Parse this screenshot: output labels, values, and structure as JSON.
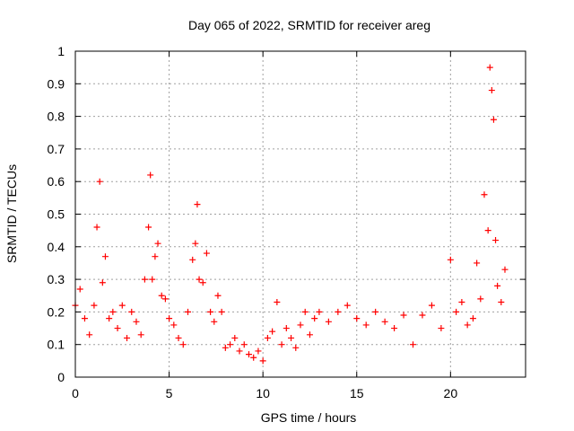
{
  "chart_data": {
    "type": "scatter",
    "title": "Day 065 of 2022, SRMTID for receiver areg",
    "xlabel": "GPS time / hours",
    "ylabel": "SRMTID / TECUs",
    "xlim": [
      0,
      24
    ],
    "ylim": [
      0,
      1
    ],
    "xticks": [
      0,
      5,
      10,
      15,
      20
    ],
    "yticks": [
      0,
      0.1,
      0.2,
      0.3,
      0.4,
      0.5,
      0.6,
      0.7,
      0.8,
      0.9,
      1
    ],
    "xtick_labels": [
      "0",
      "5",
      "10",
      "15",
      "20"
    ],
    "ytick_labels": [
      "0",
      "0.1",
      "0.2",
      "0.3",
      "0.4",
      "0.5",
      "0.6",
      "0.7",
      "0.8",
      "0.9",
      "1"
    ],
    "grid": true,
    "marker": "plus",
    "color": "#ff0000",
    "series": [
      {
        "name": "SRMTID",
        "x": [
          0.0,
          0.25,
          0.5,
          0.75,
          1.0,
          1.15,
          1.3,
          1.45,
          1.6,
          1.8,
          2.0,
          2.25,
          2.5,
          2.75,
          3.0,
          3.25,
          3.5,
          3.7,
          3.9,
          4.0,
          4.1,
          4.25,
          4.4,
          4.6,
          4.8,
          5.0,
          5.25,
          5.5,
          5.75,
          6.0,
          6.25,
          6.4,
          6.5,
          6.6,
          6.8,
          7.0,
          7.2,
          7.4,
          7.6,
          7.8,
          8.0,
          8.25,
          8.5,
          8.75,
          9.0,
          9.25,
          9.5,
          9.75,
          10.0,
          10.25,
          10.5,
          10.75,
          11.0,
          11.25,
          11.5,
          11.75,
          12.0,
          12.25,
          12.5,
          12.75,
          13.0,
          13.5,
          14.0,
          14.5,
          15.0,
          15.5,
          16.0,
          16.5,
          17.0,
          17.5,
          18.0,
          18.5,
          19.0,
          19.5,
          20.0,
          20.3,
          20.6,
          20.9,
          21.2,
          21.4,
          21.6,
          21.8,
          22.0,
          22.1,
          22.2,
          22.3,
          22.4,
          22.5,
          22.7,
          22.9
        ],
        "y": [
          0.22,
          0.27,
          0.18,
          0.13,
          0.22,
          0.46,
          0.6,
          0.29,
          0.37,
          0.18,
          0.2,
          0.15,
          0.22,
          0.12,
          0.2,
          0.17,
          0.13,
          0.3,
          0.46,
          0.62,
          0.3,
          0.37,
          0.41,
          0.25,
          0.24,
          0.18,
          0.16,
          0.12,
          0.1,
          0.2,
          0.36,
          0.41,
          0.53,
          0.3,
          0.29,
          0.38,
          0.2,
          0.17,
          0.25,
          0.2,
          0.09,
          0.1,
          0.12,
          0.08,
          0.1,
          0.07,
          0.06,
          0.08,
          0.05,
          0.12,
          0.14,
          0.23,
          0.1,
          0.15,
          0.12,
          0.09,
          0.16,
          0.2,
          0.13,
          0.18,
          0.2,
          0.17,
          0.2,
          0.22,
          0.18,
          0.16,
          0.2,
          0.17,
          0.15,
          0.19,
          0.1,
          0.19,
          0.22,
          0.15,
          0.36,
          0.2,
          0.23,
          0.16,
          0.18,
          0.35,
          0.24,
          0.56,
          0.45,
          0.95,
          0.88,
          0.79,
          0.42,
          0.28,
          0.23,
          0.33
        ]
      }
    ]
  }
}
